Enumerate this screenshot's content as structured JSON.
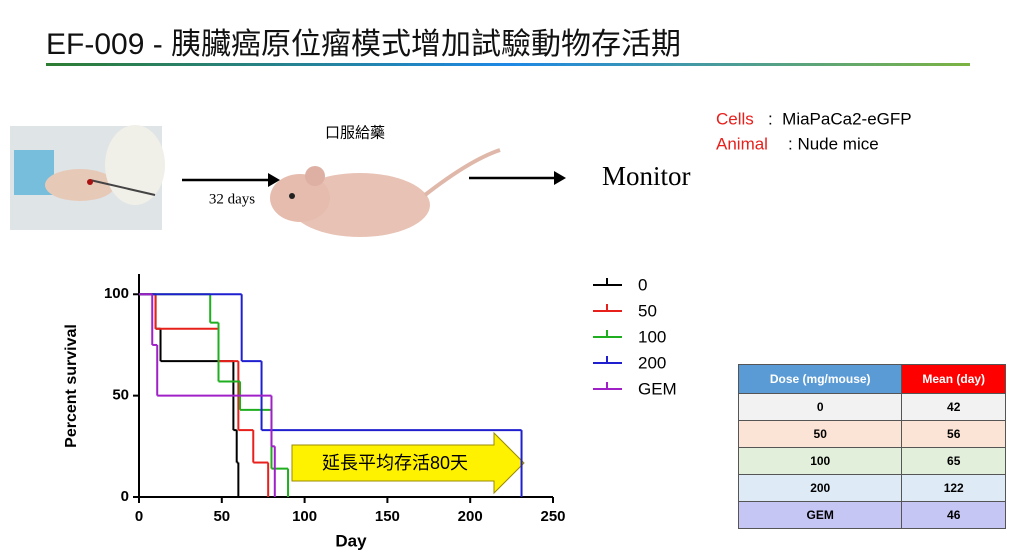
{
  "header": {
    "title": "EF-009 - 胰臟癌原位瘤模式增加試驗動物存活期"
  },
  "workflow": {
    "treatment": "口服給藥",
    "interval": "32 days",
    "monitor": "Monitor",
    "cells_label": "Cells",
    "cells_value": ":  MiaPaCa2-eGFP",
    "animal_label": "Animal",
    "animal_value": ": Nude mice"
  },
  "chart_data": {
    "type": "step",
    "x_label": "Day",
    "y_label": "Percent survival",
    "xlim": [
      0,
      250
    ],
    "xticks": [
      0,
      50,
      100,
      150,
      200,
      250
    ],
    "ylim": [
      0,
      110
    ],
    "yticks": [
      0,
      50,
      100
    ],
    "annotation": "延長平均存活80天",
    "series": [
      {
        "name": "0",
        "color": "#000000",
        "x": [
          0,
          10,
          13,
          57,
          59,
          60
        ],
        "values": [
          100,
          83,
          67,
          33,
          17,
          0
        ]
      },
      {
        "name": "50",
        "color": "#e8201c",
        "x": [
          0,
          10,
          48,
          60,
          69,
          78
        ],
        "values": [
          100,
          83,
          67,
          33,
          17,
          0
        ]
      },
      {
        "name": "100",
        "color": "#1fae1f",
        "x": [
          0,
          43,
          48,
          61,
          80,
          90
        ],
        "values": [
          100,
          86,
          57,
          43,
          14,
          0
        ]
      },
      {
        "name": "200",
        "color": "#1f1fd0",
        "x": [
          0,
          62,
          74,
          231
        ],
        "values": [
          100,
          67,
          33,
          0
        ]
      },
      {
        "name": "GEM",
        "color": "#a020c8",
        "x": [
          0,
          8,
          11,
          80,
          82
        ],
        "values": [
          100,
          75,
          50,
          25,
          0
        ]
      }
    ]
  },
  "table": {
    "header": [
      "Dose (mg/mouse)",
      "Mean (day)"
    ],
    "rows": [
      [
        "0",
        "42"
      ],
      [
        "50",
        "56"
      ],
      [
        "100",
        "65"
      ],
      [
        "200",
        "122"
      ],
      [
        "GEM",
        "46"
      ]
    ]
  }
}
